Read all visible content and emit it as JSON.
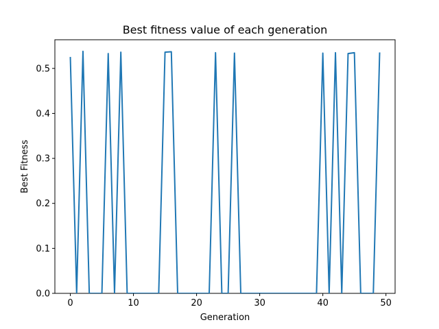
{
  "chart_data": {
    "type": "line",
    "title": "Best fitness value of each generation",
    "xlabel": "Generation",
    "ylabel": "Best Fitness",
    "xlim": [
      -2.45,
      51.45
    ],
    "ylim": [
      0,
      0.5637
    ],
    "x_ticks": [
      0,
      10,
      20,
      30,
      40,
      50
    ],
    "y_ticks": [
      0.0,
      0.1,
      0.2,
      0.3,
      0.4,
      0.5
    ],
    "x_tick_labels": [
      "0",
      "10",
      "20",
      "30",
      "40",
      "50"
    ],
    "y_tick_labels": [
      "0.0",
      "0.1",
      "0.2",
      "0.3",
      "0.4",
      "0.5"
    ],
    "grid": false,
    "series": [
      {
        "color": "#1f77b4",
        "x": [
          0,
          1,
          2,
          3,
          4,
          5,
          6,
          7,
          8,
          9,
          10,
          11,
          12,
          13,
          14,
          15,
          16,
          17,
          18,
          19,
          20,
          21,
          22,
          23,
          24,
          25,
          26,
          27,
          28,
          29,
          30,
          31,
          32,
          33,
          34,
          35,
          36,
          37,
          38,
          39,
          40,
          41,
          42,
          43,
          44,
          45,
          46,
          47,
          48,
          49
        ],
        "values": [
          0.524,
          0,
          0.538,
          0,
          0,
          0,
          0.533,
          0,
          0.536,
          0,
          0,
          0,
          0,
          0,
          0,
          0.536,
          0.537,
          0,
          0,
          0,
          0,
          0,
          0,
          0.535,
          0,
          0,
          0.534,
          0,
          0,
          0,
          0,
          0,
          0,
          0,
          0,
          0,
          0,
          0,
          0,
          0,
          0.534,
          0,
          0.535,
          0,
          0.533,
          0.535,
          0,
          0,
          0,
          0.534
        ]
      }
    ]
  }
}
